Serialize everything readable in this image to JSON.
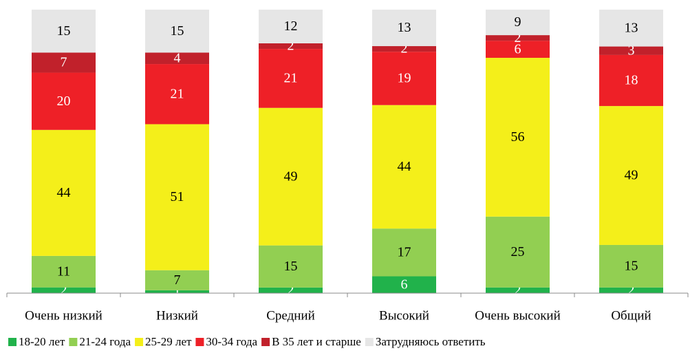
{
  "chart_data": {
    "type": "stacked_bar",
    "categories": [
      "Очень низкий",
      "Низкий",
      "Средний",
      "Высокий",
      "Очень высокий",
      "Общий"
    ],
    "series": [
      {
        "name": "18-20 лет",
        "color": "#21b24b",
        "values": [
          2,
          1,
          2,
          6,
          2,
          2
        ]
      },
      {
        "name": "21-24 года",
        "color": "#92cf52",
        "values": [
          11,
          7,
          15,
          17,
          25,
          15
        ]
      },
      {
        "name": "25-29 лет",
        "color": "#f4ef1a",
        "values": [
          44,
          51,
          49,
          44,
          56,
          49
        ]
      },
      {
        "name": "30-34 года",
        "color": "#ee2027",
        "values": [
          20,
          21,
          21,
          19,
          6,
          18
        ]
      },
      {
        "name": "В 35 лет и старше",
        "color": "#c1212b",
        "values": [
          7,
          4,
          2,
          2,
          2,
          3
        ]
      },
      {
        "name": "Затрудняюсь ответить",
        "color": "#e6e6e6",
        "values": [
          15,
          15,
          12,
          13,
          9,
          13
        ]
      }
    ],
    "legend": "bottom"
  }
}
